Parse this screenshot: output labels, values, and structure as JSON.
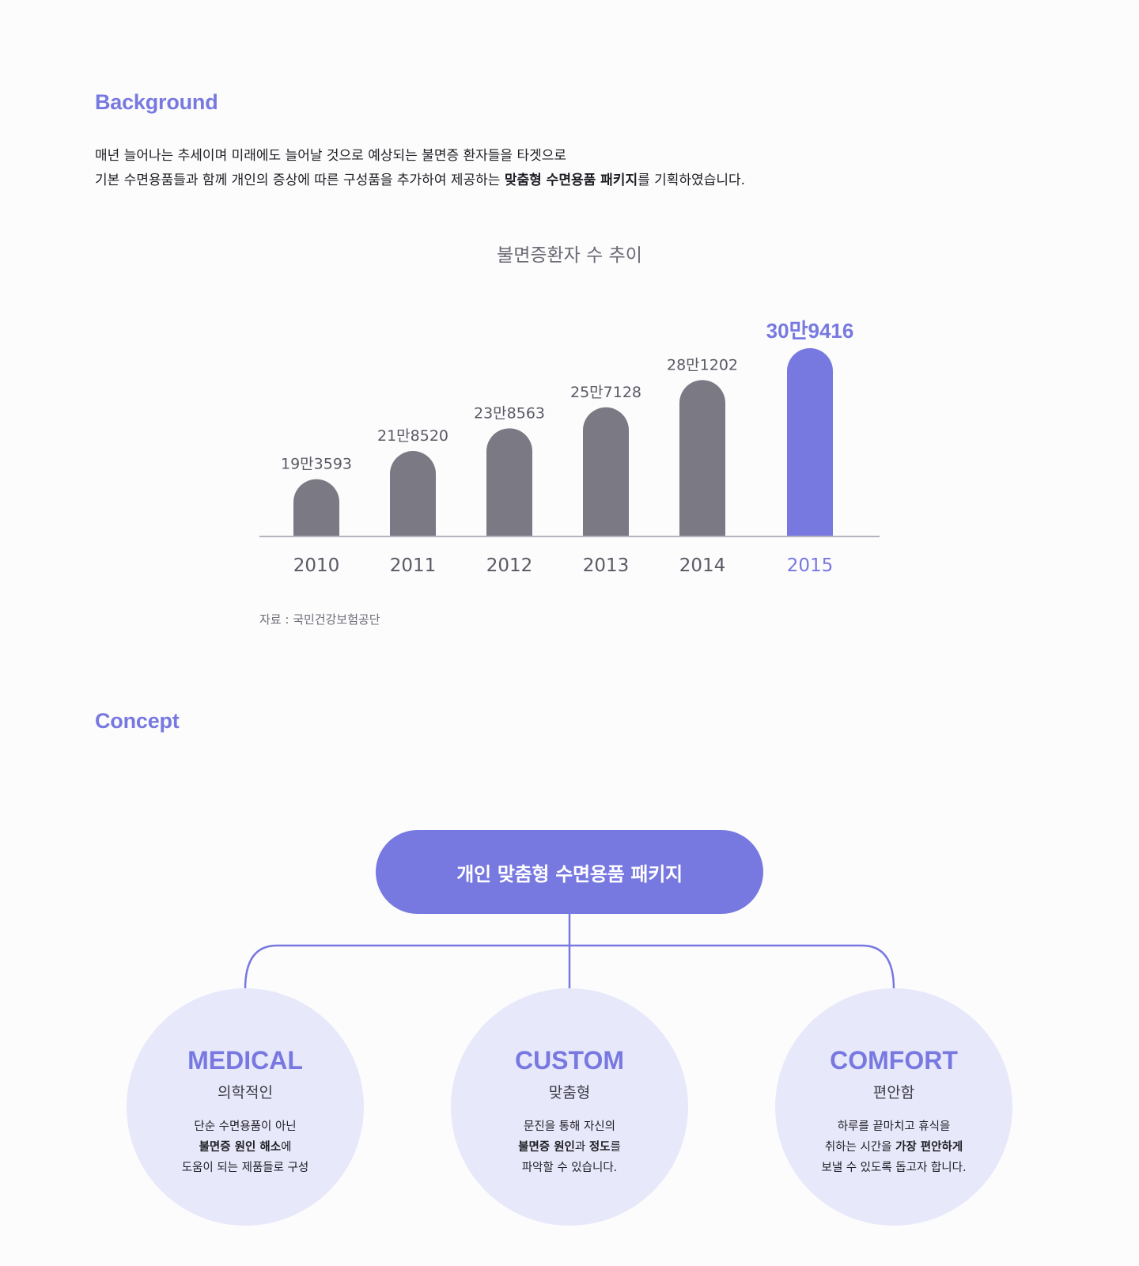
{
  "background": {
    "title": "Background",
    "line1": "매년 늘어나는 추세이며 미래에도 늘어날 것으로 예상되는 불면증 환자들을 타겟으로",
    "line2_before": "기본 수면용품들과 함께 개인의 증상에 따른 구성품을 추가하여 제공하는 ",
    "line2_bold": "맞춤형 수면용품 패키지",
    "line2_after": "를 기획하였습니다."
  },
  "chart_data": {
    "type": "bar",
    "title": "불면증환자 수 추이",
    "categories": [
      "2010",
      "2011",
      "2012",
      "2013",
      "2014",
      "2015"
    ],
    "values": [
      193593,
      218520,
      238563,
      257128,
      281202,
      309416
    ],
    "data_labels": [
      "19만3593",
      "21만8520",
      "23만8563",
      "25만7128",
      "28만1202",
      "30만9416"
    ],
    "highlight_index": 5,
    "colors": {
      "normal": "#7a7984",
      "highlight": "#7879e0",
      "axis": "#b4b4bc",
      "label": "#5a5a64",
      "title": "#6b6b75"
    },
    "xlabel": "",
    "ylabel": "",
    "grid": false,
    "legend": "none"
  },
  "source": "자료 : 국민건강보험공단",
  "concept": {
    "title": "Concept",
    "root": "개인 맞춤형 수면용품 패키지",
    "line_color": "#7879e0",
    "items": [
      {
        "en": "MEDICAL",
        "ko": "의학적인",
        "d1": "단순 수면용품이 아닌",
        "d2_bold": "불면증 원인 해소",
        "d2_after": "에",
        "d3": "도움이 되는 제품들로 구성"
      },
      {
        "en": "CUSTOM",
        "ko": "맞춤형",
        "d1": "문진을 통해 자신의",
        "d2_bold_a": "불면증 원인",
        "d2_mid": "과 ",
        "d2_bold_b": "정도",
        "d2_after": "를",
        "d3": "파악할 수 있습니다."
      },
      {
        "en": "COMFORT",
        "ko": "편안함",
        "d1": "하루를 끝마치고 휴식을",
        "d2_before": "취하는 시간을 ",
        "d2_bold": "가장 편안하게",
        "d3": "보낼 수 있도록 돕고자 합니다."
      }
    ]
  }
}
